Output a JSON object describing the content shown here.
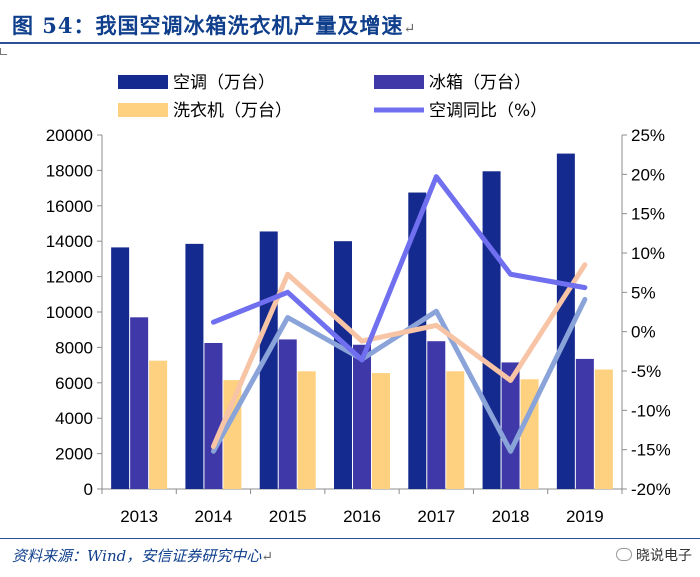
{
  "figure": {
    "title": "图 54：我国空调冰箱洗衣机产量及增速",
    "source": "资料来源：Wind，安信证券研究中心",
    "watermark": "晓说电子",
    "return_mark": "↵"
  },
  "chart_data": {
    "type": "bar",
    "title": "我国空调冰箱洗衣机产量及增速",
    "categories": [
      "2013",
      "2014",
      "2015",
      "2016",
      "2017",
      "2018",
      "2019"
    ],
    "series": [
      {
        "name": "空调（万台）",
        "kind": "bar",
        "axis": "left",
        "color": "#152a8e",
        "values": [
          13650,
          13850,
          14550,
          14000,
          16750,
          17950,
          18950
        ]
      },
      {
        "name": "冰箱（万台）",
        "kind": "bar",
        "axis": "left",
        "color": "#3f38a8",
        "values": [
          9700,
          8250,
          8450,
          8150,
          8350,
          7150,
          7350
        ]
      },
      {
        "name": "洗衣机（万台）",
        "kind": "bar",
        "axis": "left",
        "color": "#fdd17f",
        "values": [
          7250,
          6150,
          6650,
          6550,
          6650,
          6200,
          6750
        ]
      },
      {
        "name": "空调同比（%）",
        "kind": "line",
        "axis": "right",
        "color": "#6f6ff0",
        "values": [
          null,
          1.2,
          5.0,
          -3.6,
          19.7,
          7.3,
          5.6
        ]
      },
      {
        "name": "",
        "kind": "line",
        "axis": "right",
        "color": "#f7c4a5",
        "values": [
          null,
          -14.6,
          7.3,
          -1.2,
          0.8,
          -6.2,
          8.5
        ]
      },
      {
        "name": "",
        "kind": "line",
        "axis": "right",
        "color": "#8aa3d9",
        "values": [
          null,
          -15.2,
          1.8,
          -3.5,
          2.6,
          -15.2,
          4.1
        ]
      }
    ],
    "y_left": {
      "ylim": [
        0,
        20000
      ],
      "ticks": [
        "0",
        "2000",
        "4000",
        "6000",
        "8000",
        "10000",
        "12000",
        "14000",
        "16000",
        "18000",
        "20000"
      ]
    },
    "y_right": {
      "ylim": [
        -20,
        25
      ],
      "ticks": [
        "-20%",
        "-15%",
        "-10%",
        "-5%",
        "0%",
        "5%",
        "10%",
        "15%",
        "20%",
        "25%"
      ]
    },
    "legend": {
      "position": "top",
      "items": [
        "空调（万台）",
        "冰箱（万台）",
        "洗衣机（万台）",
        "空调同比（%）"
      ]
    },
    "grid": false
  }
}
